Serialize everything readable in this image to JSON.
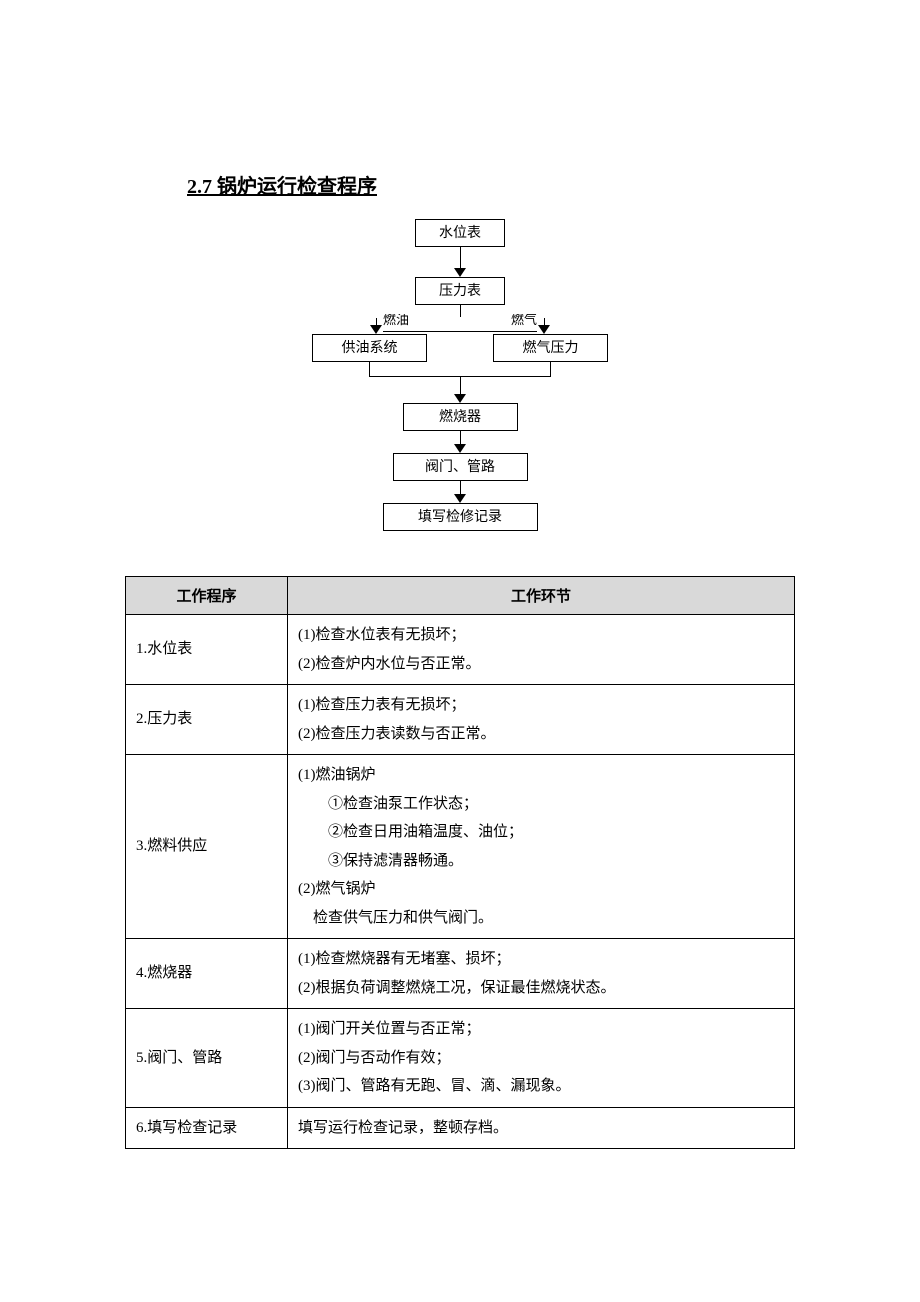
{
  "title": "2.7 锅炉运行检查程序",
  "flowchart": {
    "nodes": {
      "n1": "水位表",
      "n2": "压力表",
      "branch_left_label": "燃油",
      "branch_right_label": "燃气",
      "n3a": "供油系统",
      "n3b": "燃气压力",
      "n4": "燃烧器",
      "n5": "阀门、管路",
      "n6": "填写检修记录"
    },
    "box_border_color": "#000000",
    "background_color": "#ffffff",
    "font_size": 14
  },
  "table": {
    "headers": [
      "工作程序",
      "工作环节"
    ],
    "header_bg_color": "#d9d9d9",
    "border_color": "#000000",
    "rows": [
      {
        "procedure": "1.水位表",
        "steps": [
          "(1)检查水位表有无损坏；",
          "(2)检查炉内水位与否正常。"
        ]
      },
      {
        "procedure": "2.压力表",
        "steps": [
          "(1)检查压力表有无损坏；",
          "(2)检查压力表读数与否正常。"
        ]
      },
      {
        "procedure": "3.燃料供应",
        "steps": [
          "(1)燃油锅炉",
          "①检查油泵工作状态；",
          "②检查日用油箱温度、油位；",
          "③保持滤清器畅通。",
          "(2)燃气锅炉",
          "检查供气压力和供气阀门。"
        ],
        "indents": [
          0,
          1,
          1,
          1,
          0,
          2
        ]
      },
      {
        "procedure": "4.燃烧器",
        "steps": [
          "(1)检查燃烧器有无堵塞、损坏；",
          "(2)根据负荷调整燃烧工况，保证最佳燃烧状态。"
        ]
      },
      {
        "procedure": "5.阀门、管路",
        "steps": [
          "(1)阀门开关位置与否正常；",
          "(2)阀门与否动作有效；",
          "(3)阀门、管路有无跑、冒、滴、漏现象。"
        ]
      },
      {
        "procedure": "6.填写检查记录",
        "steps": [
          "填写运行检查记录，整顿存档。"
        ]
      }
    ]
  }
}
